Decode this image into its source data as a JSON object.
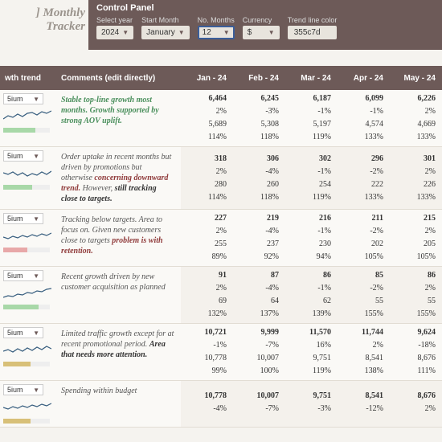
{
  "title": "] Monthly Tracker",
  "controlPanel": {
    "title": "Control Panel",
    "labels": {
      "year": "Select year",
      "startMonth": "Start Month",
      "months": "No. Months",
      "currency": "Currency",
      "trendColor": "Trend line color"
    },
    "values": {
      "year": "2024",
      "startMonth": "January",
      "months": "12",
      "currency": "$",
      "trendColor": "355c7d"
    }
  },
  "columns": {
    "trend": "wth trend",
    "comments": "Comments (edit directly)",
    "months": [
      "Jan - 24",
      "Feb - 24",
      "Mar - 24",
      "Apr - 24",
      "May - 24"
    ]
  },
  "colors": {
    "sparkLine": "#355c7d",
    "barGreen": "#a8d8a8",
    "barRed": "#e8a8a8",
    "barYellow": "#d8c078"
  },
  "sections": [
    {
      "severity": "5ium",
      "barColor": "#a8d8a8",
      "barWidth": 40,
      "spark": "0,14 6,10 12,12 18,8 24,11 30,7 36,6 42,9 48,5 54,7 60,4",
      "comment": [
        {
          "style": "c-green",
          "text": "Stable top-line growth most months. Growth supported by strong AOV uplift."
        }
      ],
      "data": [
        [
          "6,464",
          "2%",
          "5,689",
          "114%"
        ],
        [
          "6,245",
          "-3%",
          "5,308",
          "118%"
        ],
        [
          "6,187",
          "-1%",
          "5,197",
          "119%"
        ],
        [
          "6,099",
          "-1%",
          "4,574",
          "133%"
        ],
        [
          "6,226",
          "2%",
          "4,669",
          "133%"
        ]
      ]
    },
    {
      "severity": "5ium",
      "barColor": "#a8d8a8",
      "barWidth": 36,
      "spark": "0,10 6,12 12,9 18,13 24,10 30,14 36,11 42,13 48,9 54,12 60,8",
      "comment": [
        {
          "style": "",
          "text": "Order uptake in recent months but driven by promotions but otherwise "
        },
        {
          "style": "c-red",
          "text": "concerning downward trend."
        },
        {
          "style": "",
          "text": " However, "
        },
        {
          "style": "c-bold",
          "text": "still tracking close to targets."
        }
      ],
      "data": [
        [
          "318",
          "2%",
          "280",
          "114%"
        ],
        [
          "306",
          "-4%",
          "260",
          "118%"
        ],
        [
          "302",
          "-1%",
          "254",
          "119%"
        ],
        [
          "296",
          "-2%",
          "222",
          "133%"
        ],
        [
          "301",
          "2%",
          "226",
          "133%"
        ]
      ]
    },
    {
      "severity": "5ium",
      "barColor": "#e8a8a8",
      "barWidth": 30,
      "spark": "0,12 6,14 12,11 18,13 24,10 30,12 36,9 42,11 48,8 54,10 60,7",
      "comment": [
        {
          "style": "",
          "text": "Tracking below targets. Area to focus on. Given new customers close to targets "
        },
        {
          "style": "c-red",
          "text": "problem is with retention."
        }
      ],
      "data": [
        [
          "227",
          "2%",
          "255",
          "89%"
        ],
        [
          "219",
          "-4%",
          "237",
          "92%"
        ],
        [
          "216",
          "-1%",
          "230",
          "94%"
        ],
        [
          "211",
          "-2%",
          "202",
          "105%"
        ],
        [
          "215",
          "2%",
          "205",
          "105%"
        ]
      ]
    },
    {
      "severity": "5ium",
      "barColor": "#a8d8a8",
      "barWidth": 44,
      "spark": "0,16 6,14 12,15 18,12 24,13 30,10 36,11 42,8 48,9 54,6 60,5",
      "comment": [
        {
          "style": "",
          "text": "Recent growth driven by new customer acquisition as planned"
        }
      ],
      "data": [
        [
          "91",
          "2%",
          "69",
          "132%"
        ],
        [
          "87",
          "-4%",
          "64",
          "137%"
        ],
        [
          "86",
          "-1%",
          "62",
          "139%"
        ],
        [
          "85",
          "-2%",
          "55",
          "155%"
        ],
        [
          "86",
          "2%",
          "55",
          "155%"
        ]
      ]
    },
    {
      "severity": "5ium",
      "barColor": "#d8c078",
      "barWidth": 34,
      "spark": "0,12 6,10 12,13 18,9 24,12 30,8 36,11 42,7 48,10 54,6 60,9",
      "comment": [
        {
          "style": "",
          "text": "Limited traffic growth except for at recent promotional period. "
        },
        {
          "style": "c-bold",
          "text": "Area that needs more attention."
        }
      ],
      "data": [
        [
          "10,721",
          "-1%",
          "10,778",
          "99%"
        ],
        [
          "9,999",
          "-7%",
          "10,007",
          "100%"
        ],
        [
          "11,570",
          "16%",
          "9,751",
          "119%"
        ],
        [
          "11,744",
          "2%",
          "8,541",
          "138%"
        ],
        [
          "9,624",
          "-18%",
          "8,676",
          "111%"
        ]
      ]
    },
    {
      "severity": "5ium",
      "barColor": "#d8c078",
      "barWidth": 34,
      "spark": "0,11 6,13 12,10 18,12 24,9 30,11 36,8 42,10 48,7 54,9 60,6",
      "comment": [
        {
          "style": "",
          "text": "Spending within budget"
        }
      ],
      "data": [
        [
          "10,778",
          "-4%",
          "",
          " "
        ],
        [
          "10,007",
          "-7%",
          "",
          " "
        ],
        [
          "9,751",
          "-3%",
          "",
          " "
        ],
        [
          "8,541",
          "-12%",
          "",
          " "
        ],
        [
          "8,676",
          "2%",
          "",
          " "
        ]
      ]
    }
  ]
}
